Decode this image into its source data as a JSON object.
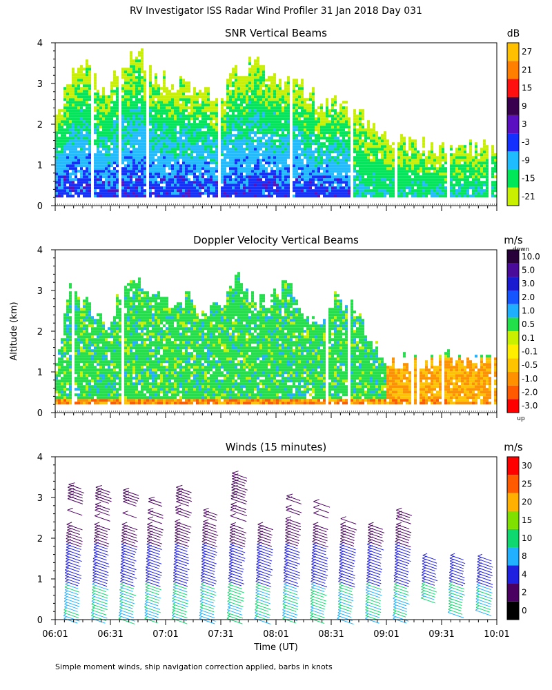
{
  "page": {
    "title": "RV Investigator ISS Radar Wind Profiler  31 Jan 2018 Day 031",
    "y_axis_label": "Altitude (km)",
    "x_axis_label": "Time (UT)",
    "footnote": "Simple moment winds, ship navigation correction applied, barbs in knots"
  },
  "colors": {
    "snr_scale": [
      "#c8f000",
      "#00e85a",
      "#1fbcff",
      "#1430ff",
      "#5a10c0",
      "#3a0050",
      "#ff1010",
      "#ff8000",
      "#ffc000"
    ],
    "velocity_scale": [
      "#ff0000",
      "#ff5a00",
      "#ff9000",
      "#ffc400",
      "#ffee00",
      "#c8f000",
      "#22e04a",
      "#1eb0ff",
      "#1455ff",
      "#1a1ad0",
      "#4a0a9a",
      "#28003a"
    ],
    "wind_scale": [
      "#000000",
      "#4a0060",
      "#2020e0",
      "#20b0ff",
      "#10d870",
      "#80e000",
      "#ffb000",
      "#ff5a00",
      "#ff0000"
    ]
  },
  "chart_data": [
    {
      "type": "heatmap",
      "title": "SNR Vertical Beams",
      "ylabel": "Altitude (km)",
      "xlabel": "",
      "x_ticks": [
        "06:01",
        "06:31",
        "07:01",
        "07:31",
        "08:01",
        "08:31",
        "09:01",
        "09:31",
        "10:01"
      ],
      "y_ticks": [
        "0",
        "1",
        "2",
        "3",
        "4"
      ],
      "ylim": [
        0,
        4
      ],
      "colorbar": {
        "unit": "dB",
        "labels": [
          "-21",
          "-15",
          "-9",
          "-3",
          "3",
          "9",
          "15",
          "21",
          "27"
        ]
      },
      "profile_hours": [
        6.02,
        6.15,
        6.3,
        6.45,
        6.6,
        6.75,
        6.9,
        7.05,
        7.2,
        7.35,
        7.5,
        7.65,
        7.8,
        7.95,
        8.1,
        8.25,
        8.4,
        8.55,
        8.7,
        8.85,
        9.0,
        9.15,
        9.3,
        9.45,
        9.6,
        9.75,
        9.9,
        10.0
      ],
      "echo_top_km": [
        2.2,
        3.2,
        3.6,
        2.8,
        3.3,
        3.8,
        3.2,
        3.0,
        3.0,
        2.9,
        2.7,
        3.3,
        3.6,
        3.3,
        3.0,
        2.9,
        2.6,
        2.5,
        2.4,
        2.1,
        1.6,
        1.6,
        1.5,
        1.5,
        1.5,
        1.5,
        1.45,
        1.45
      ]
    },
    {
      "type": "heatmap",
      "title": "Doppler Velocity Vertical Beams",
      "ylabel": "Altitude (km)",
      "xlabel": "",
      "x_ticks": [
        "06:01",
        "06:31",
        "07:01",
        "07:31",
        "08:01",
        "08:31",
        "09:01",
        "09:31",
        "10:01"
      ],
      "y_ticks": [
        "0",
        "1",
        "2",
        "3",
        "4"
      ],
      "ylim": [
        0,
        4
      ],
      "colorbar": {
        "unit": "m/s",
        "top_note": "down",
        "bottom_note": "up",
        "labels": [
          "10.0",
          "5.0",
          "3.0",
          "2.0",
          "1.0",
          "0.5",
          "0.1",
          "-0.1",
          "-0.5",
          "-1.0",
          "-2.0",
          "-3.0"
        ]
      },
      "profile_hours": [
        6.02,
        6.15,
        6.3,
        6.45,
        6.6,
        6.75,
        6.9,
        7.05,
        7.2,
        7.35,
        7.5,
        7.65,
        7.8,
        7.95,
        8.1,
        8.25,
        8.4,
        8.55,
        8.7,
        8.85,
        9.0,
        9.15,
        9.3,
        9.45,
        9.6,
        9.75,
        9.9,
        10.0
      ],
      "echo_top_km": [
        1.3,
        3.2,
        2.6,
        2.2,
        2.9,
        3.5,
        3.0,
        2.6,
        2.9,
        2.3,
        2.6,
        3.4,
        2.8,
        2.7,
        3.2,
        2.5,
        2.3,
        2.8,
        2.6,
        2.0,
        1.3,
        1.3,
        1.3,
        1.3,
        1.35,
        1.35,
        1.35,
        1.35
      ]
    },
    {
      "type": "wind_barbs",
      "title": "Winds (15 minutes)",
      "ylabel": "Altitude (km)",
      "xlabel": "Time (UT)",
      "x_ticks": [
        "06:01",
        "06:31",
        "07:01",
        "07:31",
        "08:01",
        "08:31",
        "09:01",
        "09:31",
        "10:01"
      ],
      "y_ticks": [
        "0",
        "1",
        "2",
        "3",
        "4"
      ],
      "ylim": [
        0,
        4
      ],
      "colorbar": {
        "unit": "m/s",
        "labels": [
          "0",
          "2",
          "4",
          "8",
          "10",
          "15",
          "20",
          "25",
          "30"
        ]
      },
      "profile_hours": [
        6.12,
        6.37,
        6.62,
        6.85,
        7.1,
        7.35,
        7.6,
        7.85,
        8.1,
        8.35,
        8.6,
        8.85,
        9.1,
        9.35,
        9.6,
        9.85
      ],
      "profile_top_km": [
        3.35,
        3.3,
        3.2,
        3.0,
        3.25,
        2.7,
        3.6,
        2.6,
        3.1,
        2.9,
        2.75,
        2.4,
        2.7,
        1.6,
        1.6,
        1.6
      ],
      "profile_bottom_km": [
        0.0,
        0.0,
        0.0,
        0.0,
        0.0,
        0.0,
        0.0,
        0.0,
        0.0,
        0.0,
        0.0,
        0.0,
        0.0,
        0.5,
        0.15,
        0.2
      ]
    }
  ]
}
